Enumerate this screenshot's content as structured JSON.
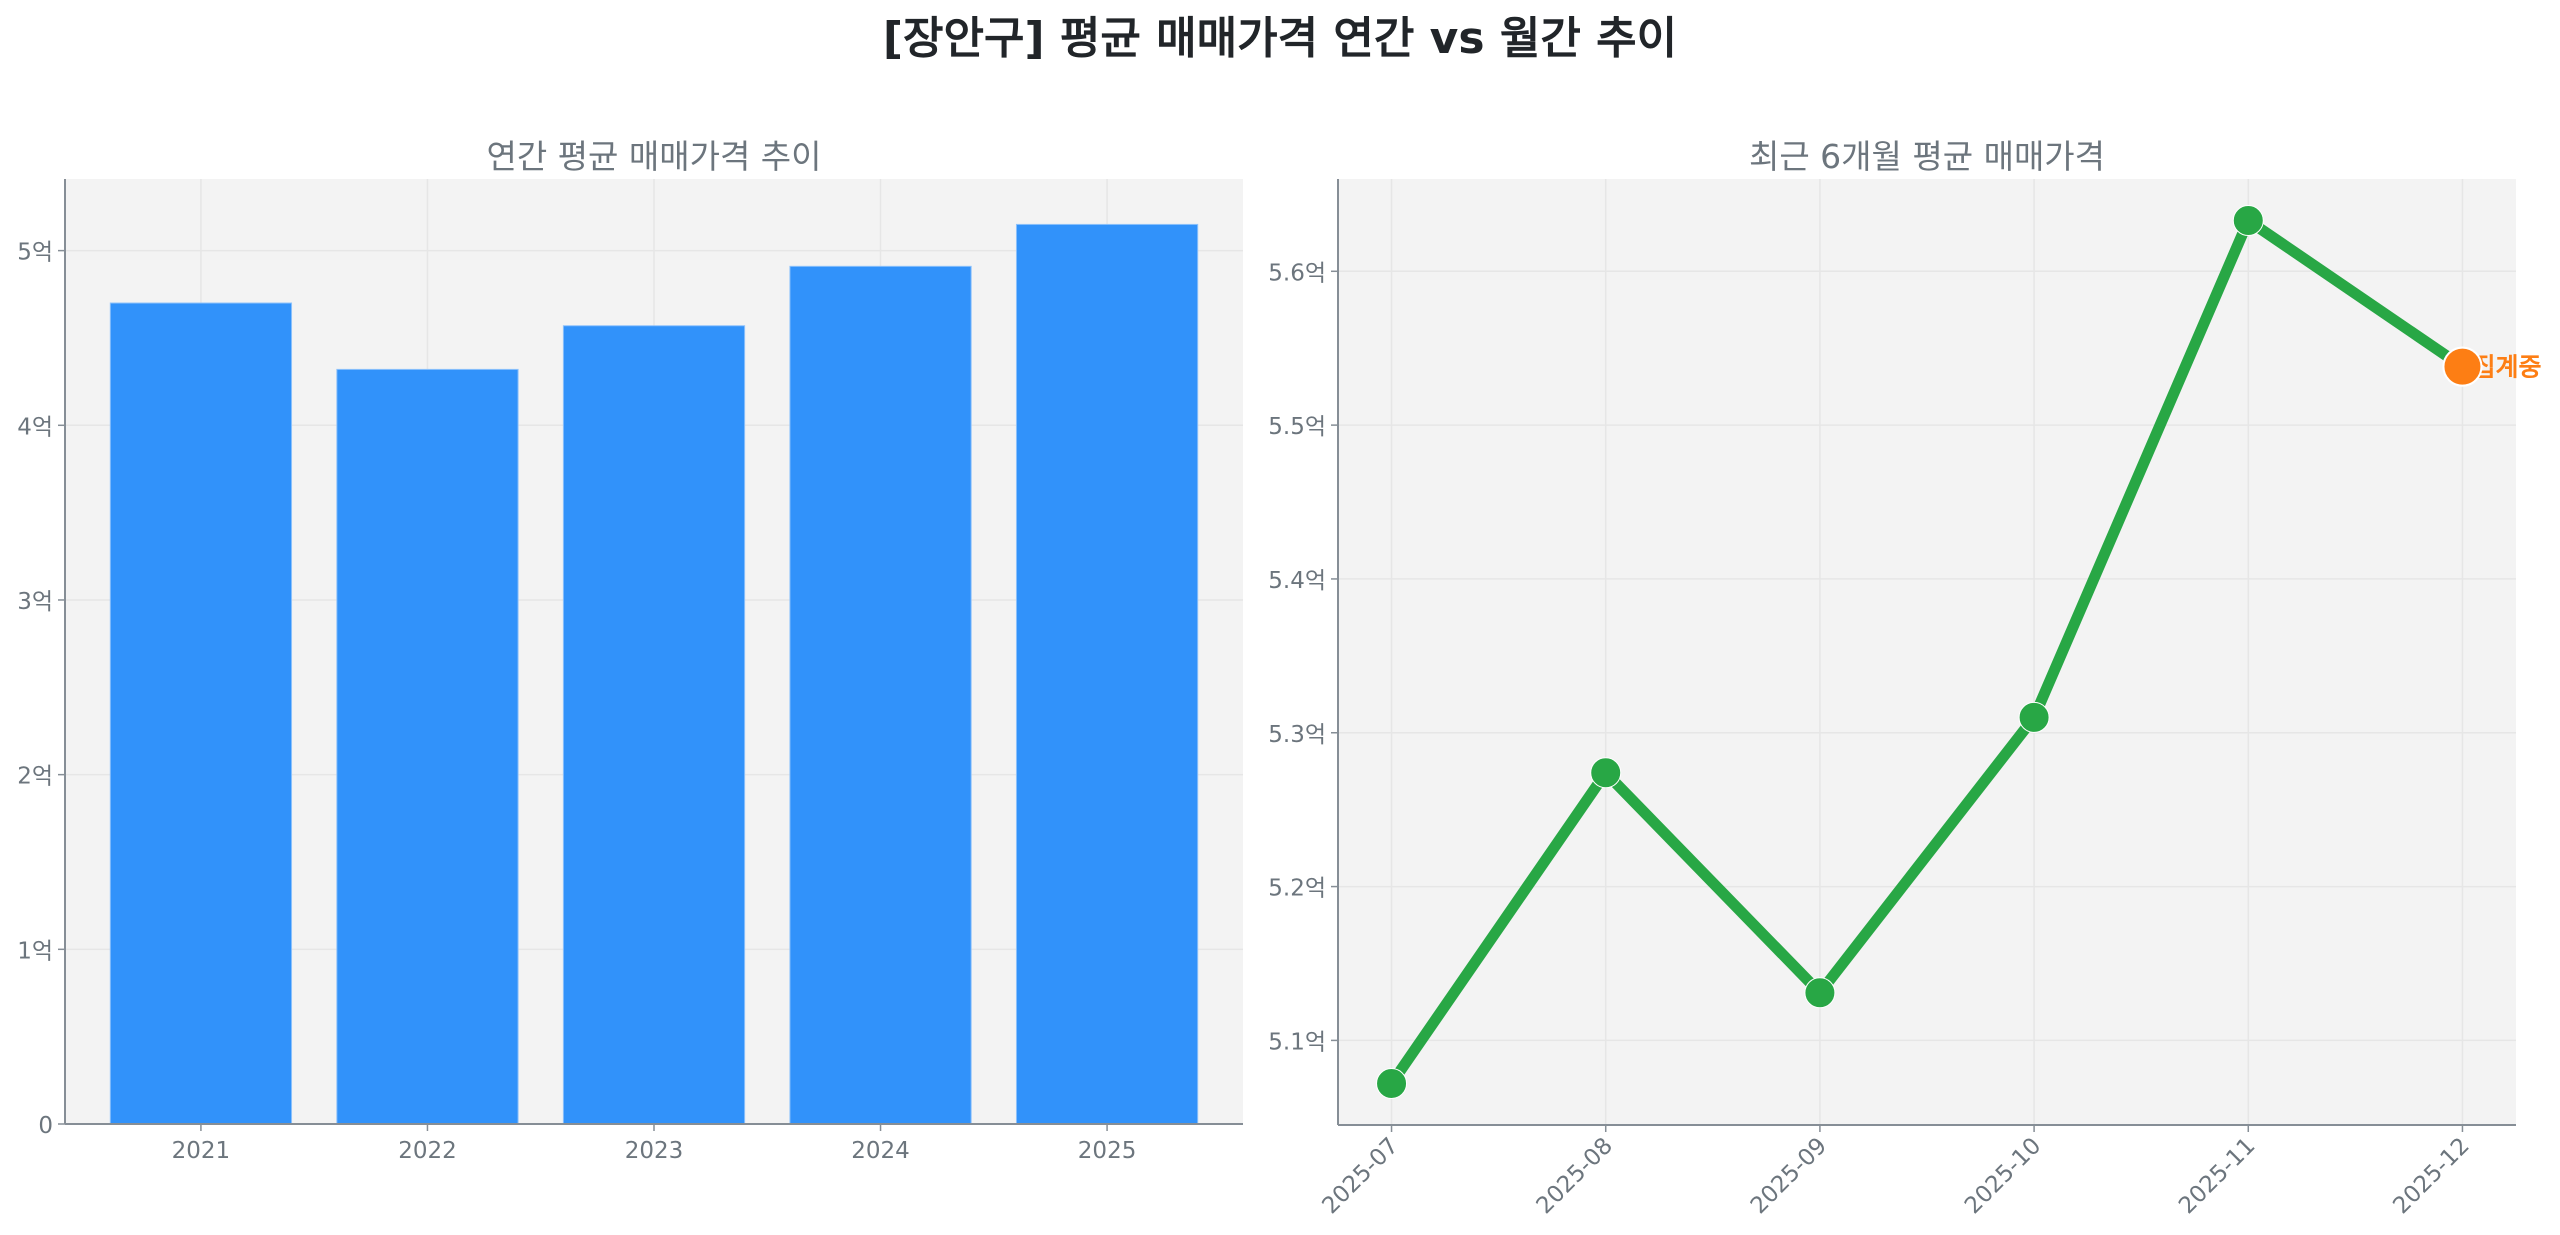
{
  "figure": {
    "title": "[장안구] 평균 매매가격 연간 vs 월간 추이"
  },
  "colors": {
    "bar": "#3192FA",
    "line": "#28A745",
    "highlight": "#FD7E14",
    "plot_bg": "#F3F3F3",
    "grid": "#E6E6E6",
    "axis": "#868E96",
    "tick_text": "#6C757D"
  },
  "chart_data": [
    {
      "type": "bar",
      "title": "연간 평균 매매가격 추이",
      "xlabel": "",
      "ylabel": "",
      "categories": [
        "2021",
        "2022",
        "2023",
        "2024",
        "2025"
      ],
      "values": [
        4.7,
        4.32,
        4.57,
        4.91,
        5.15
      ],
      "unit": "억",
      "ylim": [
        0,
        5.41
      ],
      "yticks": [
        0,
        1,
        2,
        3,
        4,
        5
      ],
      "ytick_labels": [
        "0",
        "1억",
        "2억",
        "3억",
        "4억",
        "5억"
      ],
      "grid": true,
      "legend": null
    },
    {
      "type": "line",
      "title": "최근 6개월 평균 매매가격",
      "xlabel": "",
      "ylabel": "",
      "x": [
        "2025-07",
        "2025-08",
        "2025-09",
        "2025-10",
        "2025-11",
        "2025-12"
      ],
      "values": [
        5.072,
        5.274,
        5.131,
        5.31,
        5.633,
        5.538
      ],
      "unit": "억",
      "ylim": [
        5.045,
        5.66
      ],
      "yticks": [
        5.1,
        5.2,
        5.3,
        5.4,
        5.5,
        5.6
      ],
      "ytick_labels": [
        "5.1억",
        "5.2억",
        "5.3억",
        "5.4억",
        "5.5억",
        "5.6억"
      ],
      "grid": true,
      "legend": null,
      "annotations": [
        {
          "x": "2025-12",
          "text": "집계중",
          "note": "last point highlighted in orange (in-progress month)"
        }
      ]
    }
  ]
}
